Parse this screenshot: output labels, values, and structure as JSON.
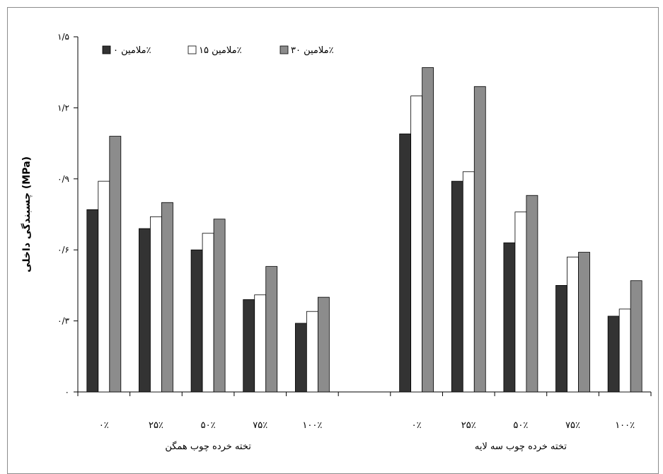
{
  "chart_data": {
    "type": "bar",
    "ylabel": "چسبندگی داخلی (MPa)",
    "ylim": [
      0,
      1.5
    ],
    "y_ticks": [
      0,
      0.3,
      0.6,
      0.9,
      1.2,
      1.5
    ],
    "y_tick_labels": [
      "۰",
      "۰/۳",
      "۰/۶",
      "۰/۹",
      "۱/۲",
      "۱/۵"
    ],
    "legend_position": "top-left",
    "series": [
      {
        "name": "ملامین ۰٪",
        "color": "#333333"
      },
      {
        "name": "ملامین ۱۵٪",
        "color": "#ffffff"
      },
      {
        "name": "ملامین ۳۰٪",
        "color": "#8c8c8c"
      }
    ],
    "groups": [
      {
        "name": "تخته خرده چوب همگن",
        "categories": [
          "۰٪",
          "۲۵٪",
          "۵۰٪",
          "۷۵٪",
          "۱۰۰٪"
        ],
        "values": [
          [
            0.77,
            0.89,
            1.08
          ],
          [
            0.69,
            0.74,
            0.8
          ],
          [
            0.6,
            0.67,
            0.73
          ],
          [
            0.39,
            0.41,
            0.53
          ],
          [
            0.29,
            0.34,
            0.4
          ]
        ]
      },
      {
        "name": "تخته خرده چوب سه لایه",
        "categories": [
          "۰٪",
          "۲۵٪",
          "۵۰٪",
          "۷۵٪",
          "۱۰۰٪"
        ],
        "values": [
          [
            1.09,
            1.25,
            1.37
          ],
          [
            0.89,
            0.93,
            1.29
          ],
          [
            0.63,
            0.76,
            0.83
          ],
          [
            0.45,
            0.57,
            0.59
          ],
          [
            0.32,
            0.35,
            0.47
          ]
        ]
      }
    ]
  }
}
